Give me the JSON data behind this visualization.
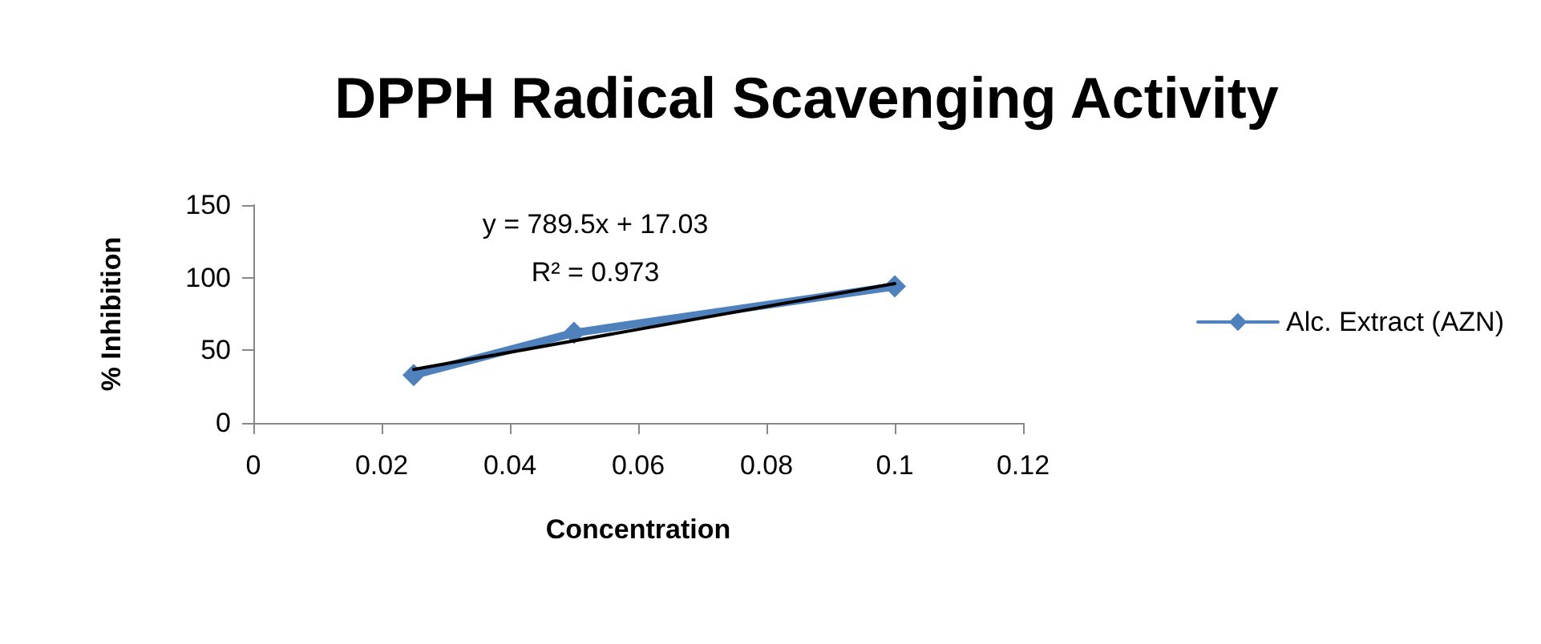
{
  "chart_data": {
    "type": "line",
    "title": "DPPH Radical Scavenging Activity",
    "xlabel": "Concentration",
    "ylabel": "% Inhibition",
    "series": [
      {
        "name": "Alc. Extract (AZN)",
        "color": "#4f81bd",
        "x": [
          0.025,
          0.05,
          0.1
        ],
        "values": [
          33,
          62,
          94
        ]
      },
      {
        "type": "line",
        "color": "#000000",
        "x": [
          0.025,
          0.1
        ],
        "values": [
          36.8,
          96.0
        ],
        "marker": "none"
      }
    ],
    "annotations": [
      "y = 789.5x + 17.03",
      "R² = 0.973"
    ],
    "xlim": [
      0,
      0.12
    ],
    "xticks": [
      0,
      0.02,
      0.04,
      0.06,
      0.08,
      0.1,
      0.12
    ],
    "ylim": [
      0,
      150
    ],
    "yticks": [
      0,
      50,
      100,
      150
    ],
    "grid": false,
    "legend": "right",
    "marker": "diamond",
    "line_style": "solid"
  }
}
